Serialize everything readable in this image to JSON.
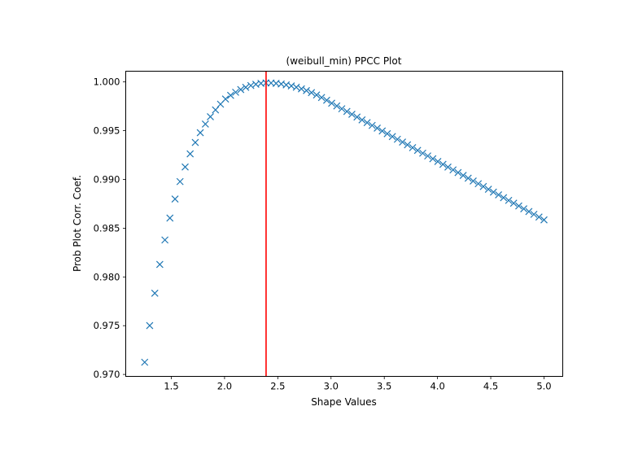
{
  "chart_data": {
    "type": "scatter",
    "title": "(weibull_min) PPCC Plot",
    "xlabel": "Shape Values",
    "ylabel": "Prob Plot Corr. Coef.",
    "xlim": [
      1.072,
      5.176
    ],
    "ylim": [
      0.9698,
      1.0011
    ],
    "xticks": [
      1.5,
      2.0,
      2.5,
      3.0,
      3.5,
      4.0,
      4.5,
      5.0
    ],
    "xtick_labels": [
      "1.5",
      "2.0",
      "2.5",
      "3.0",
      "3.5",
      "4.0",
      "4.5",
      "5.0"
    ],
    "yticks": [
      0.97,
      0.975,
      0.98,
      0.985,
      0.99,
      0.995,
      1.0
    ],
    "ytick_labels": [
      "0.970",
      "0.975",
      "0.980",
      "0.985",
      "0.990",
      "0.995",
      "1.000"
    ],
    "grid": false,
    "marker": "x",
    "series_color": "#1f77b4",
    "vline": {
      "x": 2.39,
      "color": "#ff0000"
    },
    "x": [
      1.25,
      1.297,
      1.345,
      1.392,
      1.44,
      1.487,
      1.535,
      1.582,
      1.63,
      1.677,
      1.725,
      1.772,
      1.82,
      1.867,
      1.915,
      1.962,
      2.009,
      2.057,
      2.104,
      2.152,
      2.199,
      2.247,
      2.294,
      2.342,
      2.389,
      2.437,
      2.484,
      2.532,
      2.579,
      2.627,
      2.674,
      2.722,
      2.769,
      2.816,
      2.864,
      2.911,
      2.959,
      3.006,
      3.054,
      3.101,
      3.149,
      3.196,
      3.244,
      3.291,
      3.339,
      3.386,
      3.434,
      3.481,
      3.528,
      3.576,
      3.623,
      3.671,
      3.718,
      3.766,
      3.813,
      3.861,
      3.908,
      3.956,
      4.003,
      4.051,
      4.098,
      4.146,
      4.193,
      4.241,
      4.288,
      4.335,
      4.383,
      4.43,
      4.478,
      4.525,
      4.573,
      4.62,
      4.668,
      4.715,
      4.763,
      4.81,
      4.858,
      4.905,
      4.953,
      5.0
    ],
    "y": [
      0.97125,
      0.97501,
      0.97833,
      0.98128,
      0.98379,
      0.98604,
      0.98799,
      0.98978,
      0.99128,
      0.99262,
      0.99379,
      0.99479,
      0.99568,
      0.99643,
      0.99713,
      0.99772,
      0.99825,
      0.99862,
      0.99894,
      0.99922,
      0.99945,
      0.99963,
      0.99976,
      0.99985,
      0.9999,
      0.99989,
      0.99985,
      0.99979,
      0.9997,
      0.99959,
      0.99946,
      0.99929,
      0.99911,
      0.9989,
      0.99866,
      0.9984,
      0.99812,
      0.99782,
      0.99754,
      0.99725,
      0.99697,
      0.99668,
      0.9964,
      0.99611,
      0.99583,
      0.99554,
      0.99526,
      0.99497,
      0.99469,
      0.9944,
      0.99412,
      0.99383,
      0.99355,
      0.99326,
      0.99298,
      0.99269,
      0.99241,
      0.99212,
      0.99184,
      0.99155,
      0.99127,
      0.99098,
      0.9907,
      0.99041,
      0.99013,
      0.98984,
      0.98956,
      0.98927,
      0.98899,
      0.9887,
      0.98842,
      0.98813,
      0.98785,
      0.98756,
      0.98728,
      0.98699,
      0.98671,
      0.98642,
      0.98614,
      0.98585
    ]
  }
}
